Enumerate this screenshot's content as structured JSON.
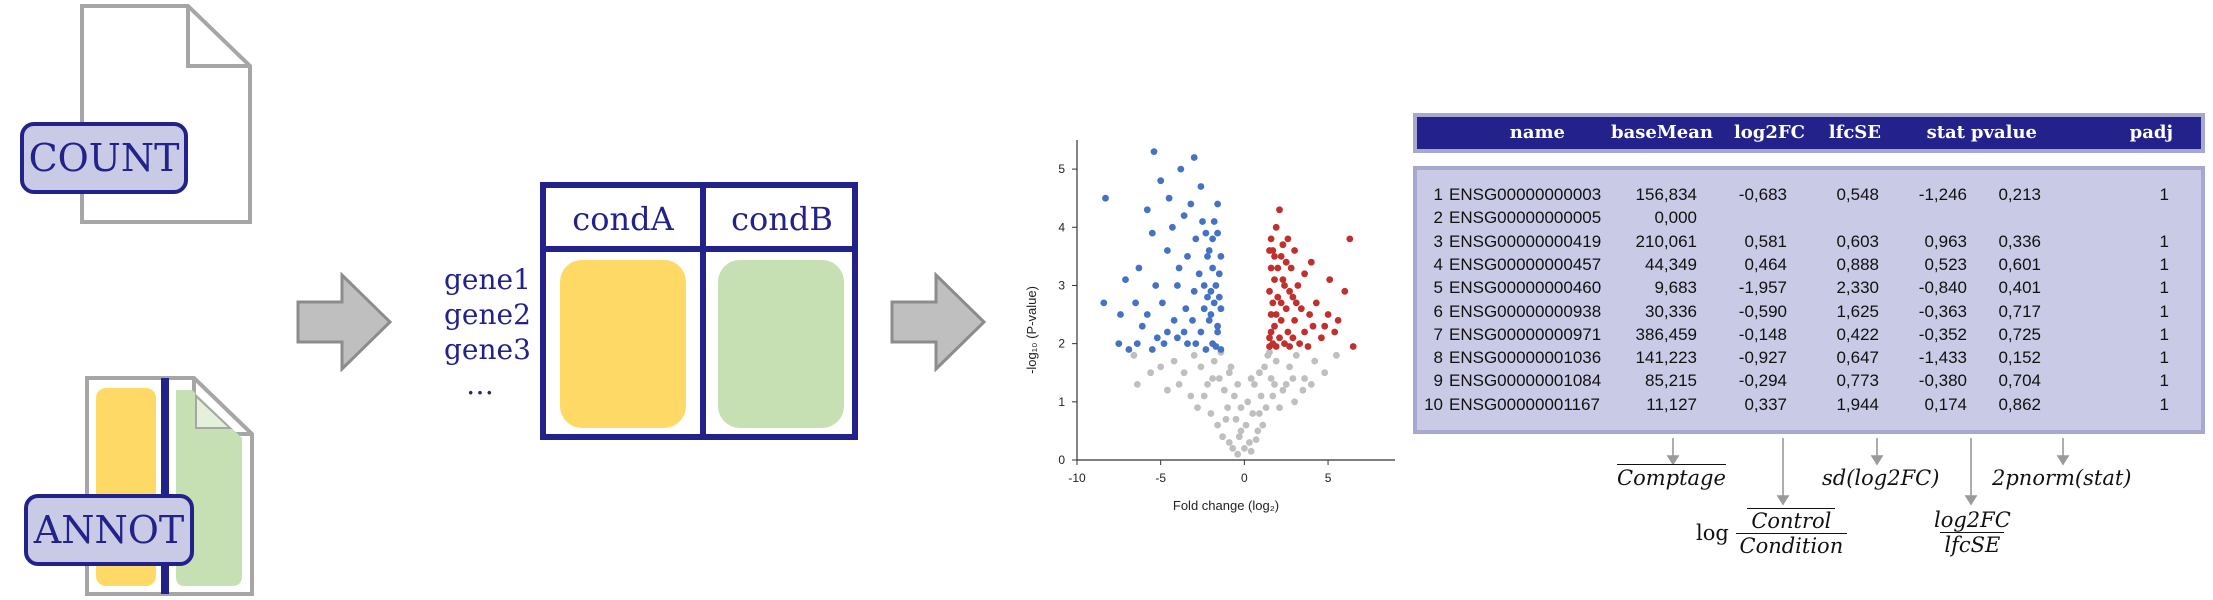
{
  "inputs": {
    "count_label": "COUNT",
    "annot_label": "ANNOT"
  },
  "genes": [
    "gene1",
    "gene2",
    "gene3",
    "…"
  ],
  "matrix": {
    "col_a": "condA",
    "col_b": "condB"
  },
  "colors": {
    "navy": "#22228a",
    "lavender": "#c9cbe6",
    "yellow": "#ffd966",
    "green": "#c6e0b4",
    "gray": "#bfbfbf",
    "blue": "#4472c4",
    "red": "#c0302c"
  },
  "chart_data": {
    "type": "scatter",
    "xlabel": "Fold change (log₂)",
    "ylabel": "-log₁₀ (P-value)",
    "xlim": [
      -10,
      9
    ],
    "ylim": [
      0,
      5.5
    ],
    "xticks": [
      "-10",
      "-5",
      "0",
      "5"
    ],
    "yticks": [
      "0",
      "1",
      "2",
      "3",
      "4",
      "5"
    ],
    "series": [
      {
        "color": "#4472c4",
        "points": [
          [
            -5.4,
            5.3
          ],
          [
            -3.0,
            5.2
          ],
          [
            -3.8,
            5.0
          ],
          [
            -5.0,
            4.8
          ],
          [
            -2.6,
            4.7
          ],
          [
            -8.3,
            4.5
          ],
          [
            -4.5,
            4.5
          ],
          [
            -3.2,
            4.4
          ],
          [
            -1.6,
            4.4
          ],
          [
            -5.8,
            4.3
          ],
          [
            -3.6,
            4.2
          ],
          [
            -2.5,
            4.1
          ],
          [
            -4.3,
            4.0
          ],
          [
            -5.5,
            3.9
          ],
          [
            -2.9,
            3.8
          ],
          [
            -1.9,
            3.8
          ],
          [
            -4.6,
            3.6
          ],
          [
            -3.4,
            3.5
          ],
          [
            -2.2,
            3.5
          ],
          [
            -6.3,
            3.3
          ],
          [
            -3.9,
            3.3
          ],
          [
            -2.7,
            3.2
          ],
          [
            -1.5,
            3.2
          ],
          [
            -7.1,
            3.1
          ],
          [
            -5.3,
            3.0
          ],
          [
            -4.0,
            3.0
          ],
          [
            -3.0,
            2.9
          ],
          [
            -2.0,
            2.9
          ],
          [
            -8.4,
            2.7
          ],
          [
            -6.5,
            2.7
          ],
          [
            -4.9,
            2.7
          ],
          [
            -3.5,
            2.6
          ],
          [
            -2.4,
            2.6
          ],
          [
            -1.4,
            2.6
          ],
          [
            -7.4,
            2.5
          ],
          [
            -5.8,
            2.5
          ],
          [
            -4.2,
            2.4
          ],
          [
            -3.1,
            2.4
          ],
          [
            -2.1,
            2.4
          ],
          [
            -6.1,
            2.3
          ],
          [
            -4.6,
            2.2
          ],
          [
            -3.6,
            2.2
          ],
          [
            -2.6,
            2.2
          ],
          [
            -1.6,
            2.2
          ],
          [
            -5.2,
            2.1
          ],
          [
            -4.0,
            2.1
          ],
          [
            -2.9,
            2.0
          ],
          [
            -1.9,
            2.0
          ],
          [
            -7.5,
            2.0
          ],
          [
            -6.4,
            2.0
          ],
          [
            -4.8,
            2.0
          ],
          [
            -3.4,
            2.0
          ],
          [
            -2.3,
            1.9
          ],
          [
            -1.4,
            1.9
          ],
          [
            -6.9,
            1.9
          ],
          [
            -5.5,
            1.9
          ],
          [
            -1.7,
            3.0
          ],
          [
            -1.8,
            2.7
          ],
          [
            -2.0,
            2.5
          ],
          [
            -1.6,
            2.3
          ],
          [
            -1.7,
            1.95
          ],
          [
            -2.2,
            2.8
          ],
          [
            -1.5,
            2.8
          ],
          [
            -2.4,
            3.0
          ],
          [
            -1.9,
            3.3
          ],
          [
            -1.4,
            3.5
          ],
          [
            -2.1,
            3.6
          ],
          [
            -1.6,
            3.9
          ],
          [
            -2.3,
            3.9
          ],
          [
            -1.8,
            4.1
          ]
        ]
      },
      {
        "color": "#c0302c",
        "points": [
          [
            2.1,
            4.3
          ],
          [
            1.9,
            4.0
          ],
          [
            2.6,
            3.8
          ],
          [
            6.3,
            3.8
          ],
          [
            1.7,
            3.6
          ],
          [
            3.0,
            3.6
          ],
          [
            2.2,
            3.5
          ],
          [
            4.0,
            3.4
          ],
          [
            1.6,
            3.3
          ],
          [
            2.8,
            3.3
          ],
          [
            3.6,
            3.2
          ],
          [
            5.1,
            3.1
          ],
          [
            1.8,
            3.1
          ],
          [
            2.4,
            3.0
          ],
          [
            3.2,
            3.0
          ],
          [
            6.0,
            2.9
          ],
          [
            1.5,
            2.9
          ],
          [
            2.0,
            2.8
          ],
          [
            2.9,
            2.8
          ],
          [
            4.3,
            2.7
          ],
          [
            1.7,
            2.7
          ],
          [
            2.5,
            2.6
          ],
          [
            3.4,
            2.6
          ],
          [
            5.0,
            2.5
          ],
          [
            1.6,
            2.5
          ],
          [
            2.2,
            2.4
          ],
          [
            3.0,
            2.4
          ],
          [
            4.1,
            2.3
          ],
          [
            1.8,
            2.3
          ],
          [
            2.6,
            2.2
          ],
          [
            3.6,
            2.2
          ],
          [
            5.4,
            2.2
          ],
          [
            1.5,
            2.1
          ],
          [
            2.1,
            2.1
          ],
          [
            2.9,
            2.1
          ],
          [
            4.6,
            2.1
          ],
          [
            1.7,
            2.0
          ],
          [
            2.4,
            2.0
          ],
          [
            3.3,
            2.0
          ],
          [
            6.5,
            1.95
          ],
          [
            1.5,
            1.95
          ],
          [
            1.9,
            1.95
          ],
          [
            2.7,
            1.95
          ],
          [
            3.8,
            1.95
          ],
          [
            2.0,
            3.3
          ],
          [
            1.6,
            3.8
          ],
          [
            2.3,
            3.7
          ],
          [
            1.8,
            3.5
          ],
          [
            2.5,
            3.4
          ],
          [
            1.5,
            3.6
          ],
          [
            2.2,
            2.7
          ],
          [
            1.9,
            2.5
          ],
          [
            2.7,
            2.9
          ],
          [
            2.3,
            3.1
          ],
          [
            1.6,
            2.2
          ],
          [
            3.1,
            2.7
          ],
          [
            3.9,
            2.5
          ],
          [
            4.8,
            2.3
          ],
          [
            5.6,
            2.4
          ]
        ]
      },
      {
        "color": "#bfbfbf",
        "points": [
          [
            -6.6,
            1.8
          ],
          [
            -6.4,
            1.3
          ],
          [
            -5.0,
            1.6
          ],
          [
            -4.2,
            1.7
          ],
          [
            -3.6,
            1.5
          ],
          [
            -3.0,
            1.8
          ],
          [
            -2.6,
            1.6
          ],
          [
            -2.2,
            1.3
          ],
          [
            -1.8,
            1.7
          ],
          [
            -1.5,
            1.4
          ],
          [
            -1.2,
            1.2
          ],
          [
            -1.0,
            0.9
          ],
          [
            -0.8,
            1.6
          ],
          [
            -0.6,
            1.1
          ],
          [
            -0.5,
            0.7
          ],
          [
            -0.3,
            0.4
          ],
          [
            -0.2,
            0.9
          ],
          [
            0.0,
            0.2
          ],
          [
            0.1,
            0.6
          ],
          [
            0.2,
            1.0
          ],
          [
            0.3,
            0.3
          ],
          [
            0.5,
            0.8
          ],
          [
            0.6,
            1.3
          ],
          [
            0.8,
            0.5
          ],
          [
            1.0,
            1.1
          ],
          [
            1.2,
            1.6
          ],
          [
            1.4,
            1.8
          ],
          [
            1.6,
            1.4
          ],
          [
            1.9,
            1.7
          ],
          [
            2.3,
            1.2
          ],
          [
            2.7,
            1.6
          ],
          [
            3.1,
            1.8
          ],
          [
            3.6,
            1.4
          ],
          [
            4.2,
            1.7
          ],
          [
            4.8,
            1.5
          ],
          [
            5.5,
            1.8
          ],
          [
            -4.6,
            1.2
          ],
          [
            -3.2,
            1.1
          ],
          [
            -2.8,
            0.9
          ],
          [
            -2.0,
            0.8
          ],
          [
            -1.6,
            0.6
          ],
          [
            -1.3,
            0.4
          ],
          [
            -0.9,
            0.3
          ],
          [
            -0.7,
            0.2
          ],
          [
            -0.4,
            0.1
          ],
          [
            0.4,
            0.15
          ],
          [
            0.7,
            0.35
          ],
          [
            1.1,
            0.6
          ],
          [
            1.3,
            0.9
          ],
          [
            1.7,
            1.1
          ],
          [
            2.1,
            0.9
          ],
          [
            2.5,
            1.3
          ],
          [
            3.0,
            1.0
          ],
          [
            3.5,
            1.2
          ],
          [
            -5.6,
            1.5
          ],
          [
            -3.9,
            1.3
          ],
          [
            -2.4,
            1.1
          ],
          [
            -1.9,
            1.4
          ],
          [
            -1.1,
            0.7
          ],
          [
            -0.2,
            0.5
          ],
          [
            0.9,
            0.8
          ],
          [
            1.8,
            1.3
          ],
          [
            2.9,
            1.4
          ],
          [
            4.0,
            1.3
          ],
          [
            -1.4,
            1.85
          ],
          [
            1.5,
            1.85
          ],
          [
            -0.9,
            1.5
          ],
          [
            0.9,
            1.5
          ],
          [
            -0.4,
            1.3
          ],
          [
            0.4,
            1.4
          ]
        ]
      }
    ]
  },
  "results_table": {
    "headers": [
      "name",
      "baseMean",
      "log2FC",
      "lfcSE",
      "stat",
      "pvalue",
      "padj"
    ],
    "rows": [
      [
        "1",
        "ENSG00000000003",
        "156,834",
        "-0,683",
        "0,548",
        "-1,246",
        "0,213",
        "1"
      ],
      [
        "2",
        "ENSG00000000005",
        "0,000",
        "",
        "",
        "",
        "",
        ""
      ],
      [
        "3",
        "ENSG00000000419",
        "210,061",
        "0,581",
        "0,603",
        "0,963",
        "0,336",
        "1"
      ],
      [
        "4",
        "ENSG00000000457",
        "44,349",
        "0,464",
        "0,888",
        "0,523",
        "0,601",
        "1"
      ],
      [
        "5",
        "ENSG00000000460",
        "9,683",
        "-1,957",
        "2,330",
        "-0,840",
        "0,401",
        "1"
      ],
      [
        "6",
        "ENSG00000000938",
        "30,336",
        "-0,590",
        "1,625",
        "-0,363",
        "0,717",
        "1"
      ],
      [
        "7",
        "ENSG00000000971",
        "386,459",
        "-0,148",
        "0,422",
        "-0,352",
        "0,725",
        "1"
      ],
      [
        "8",
        "ENSG00000001036",
        "141,223",
        "-0,927",
        "0,647",
        "-1,433",
        "0,152",
        "1"
      ],
      [
        "9",
        "ENSG00000001084",
        "85,215",
        "-0,294",
        "0,773",
        "-0,380",
        "0,704",
        "1"
      ],
      [
        "10",
        "ENSG00000001167",
        "11,127",
        "0,337",
        "1,944",
        "0,174",
        "0,862",
        "1"
      ]
    ]
  },
  "formulas": {
    "basemean": "Comptage",
    "log2fc_prefix": "log",
    "log2fc_num": "Control",
    "log2fc_den": "Condition",
    "lfcse": "sd(log2FC)",
    "stat_num": "log2FC",
    "stat_den": "lfcSE",
    "pvalue": "2pnorm(stat)"
  }
}
